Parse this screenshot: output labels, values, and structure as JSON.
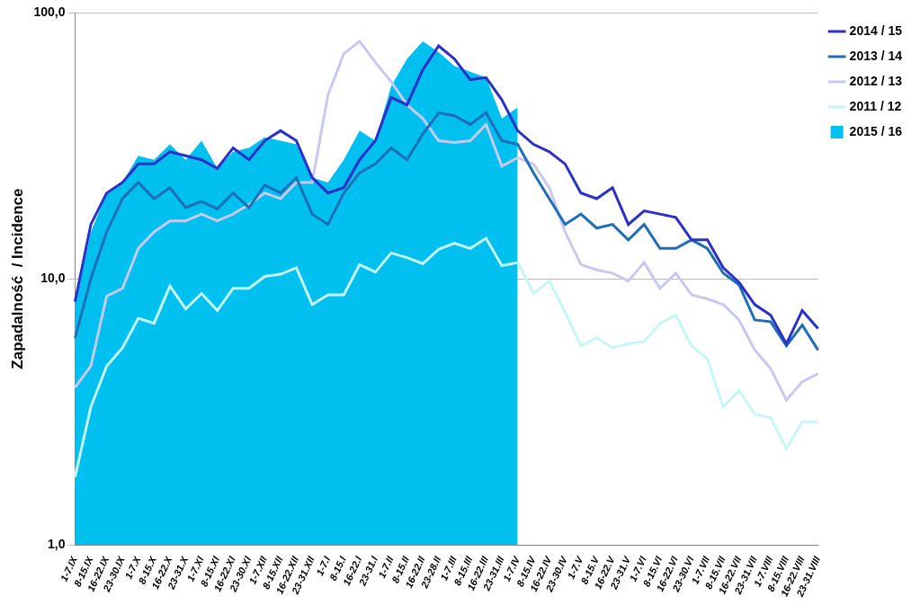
{
  "chart_data": {
    "type": "line",
    "y_label": "Zapadalność  / Incidence",
    "log": "y",
    "grid": true,
    "legend": "upper right",
    "ylim": [
      1,
      100
    ],
    "yticks": [
      {
        "value": 1,
        "label": "1,0"
      },
      {
        "value": 10,
        "label": "10,0"
      },
      {
        "value": 100,
        "label": "100,0"
      }
    ],
    "categories": [
      "1-7.IX",
      "8-15.IX",
      "16-22.IX",
      "23-30.IX",
      "1-7.X",
      "8-15.X",
      "16-22.X",
      "23-31.X",
      "1-7.XI",
      "8-15.XI",
      "16-22.XI",
      "23-30.XI",
      "1-7.XII",
      "8-15.XII",
      "16-22.XII",
      "23-31.XII",
      "1-7.I",
      "8-15.I",
      "16-22.I",
      "23-31.I",
      "1-7.II",
      "8-15.II",
      "16-22.II",
      "23-28.II",
      "1-7.III",
      "8-15.III",
      "16-22.III",
      "23-31.III",
      "1-7.IV",
      "8-15.IV",
      "16-22.IV",
      "23-30.IV",
      "1-7.V",
      "8-15.V",
      "16-22.V",
      "23-31.V",
      "1-7.VI",
      "8-15.VI",
      "16-22.VI",
      "23-30.VI",
      "1-7.VII",
      "8-15.VII",
      "16-22.VII",
      "23-31.VII",
      "1-7.VIII",
      "8-15.VIII",
      "16-22.VIII",
      "23-31.VIII"
    ],
    "series": [
      {
        "name": "2015 / 16",
        "type": "area",
        "color": "#00c0f0",
        "values": [
          8,
          15,
          21,
          23,
          29,
          28,
          32,
          28,
          33,
          26,
          30,
          31,
          34,
          33,
          32,
          24,
          23,
          28,
          36,
          33,
          53,
          67,
          78,
          71,
          63,
          60,
          57,
          40,
          44,
          null,
          null,
          null,
          null,
          null,
          null,
          null,
          null,
          null,
          null,
          null,
          null,
          null,
          null,
          null,
          null,
          null,
          null,
          null
        ]
      },
      {
        "name": "2011 / 12",
        "type": "line",
        "color": "#c6f6f6",
        "values": [
          1.8,
          3.3,
          4.7,
          5.5,
          7.1,
          6.8,
          9.4,
          7.7,
          8.8,
          7.6,
          9.2,
          9.2,
          10.2,
          10.4,
          11,
          8,
          8.7,
          8.7,
          11.3,
          10.6,
          12.5,
          12,
          11.4,
          12.9,
          13.6,
          13,
          14.2,
          11.2,
          11.5,
          8.8,
          9.8,
          7.5,
          5.6,
          6,
          5.5,
          5.7,
          5.8,
          6.8,
          7.3,
          5.6,
          5,
          3.3,
          3.8,
          3.1,
          3,
          2.3,
          2.9,
          2.9
        ]
      },
      {
        "name": "2012 / 13",
        "type": "line",
        "color": "#c8c8f0",
        "values": [
          3.9,
          4.7,
          8.6,
          9.2,
          13,
          15,
          16.5,
          16.5,
          17.5,
          16.5,
          17.5,
          19,
          21,
          20,
          23,
          23,
          49,
          70,
          78,
          65,
          55,
          45,
          40,
          33,
          32.5,
          33,
          38,
          26.5,
          28.5,
          27,
          22,
          15,
          11.3,
          10.8,
          10.5,
          9.8,
          11.5,
          9.2,
          10.5,
          8.7,
          8.4,
          8,
          7,
          5.4,
          4.6,
          3.5,
          4.1,
          4.4
        ]
      },
      {
        "name": "2013 / 14",
        "type": "line",
        "color": "#1f6fb8",
        "values": [
          6,
          10,
          15,
          20,
          23,
          20,
          22,
          18.5,
          19.5,
          18.3,
          21,
          18.5,
          22.5,
          21,
          24,
          17.5,
          16,
          21,
          25,
          27,
          31,
          28,
          35,
          42,
          41,
          38,
          42,
          33,
          32,
          25,
          20,
          16,
          17.5,
          15.5,
          16,
          14,
          16,
          13,
          13,
          14,
          13,
          10.5,
          9.5,
          7,
          6.9,
          5.6,
          6.7,
          5.4
        ]
      },
      {
        "name": "2014 / 15",
        "type": "line",
        "color": "#2a30c8",
        "values": [
          8.2,
          16,
          21,
          23,
          27,
          27,
          30,
          29,
          28,
          26,
          31,
          28,
          33,
          36,
          33,
          24,
          21,
          22,
          28,
          33,
          48,
          45,
          61,
          75,
          67,
          56,
          57,
          47,
          36,
          32,
          30,
          27,
          21,
          20,
          22,
          16,
          18,
          17.5,
          17,
          14,
          14,
          11,
          9.7,
          8,
          7.3,
          5.7,
          7.6,
          6.5
        ]
      }
    ]
  }
}
